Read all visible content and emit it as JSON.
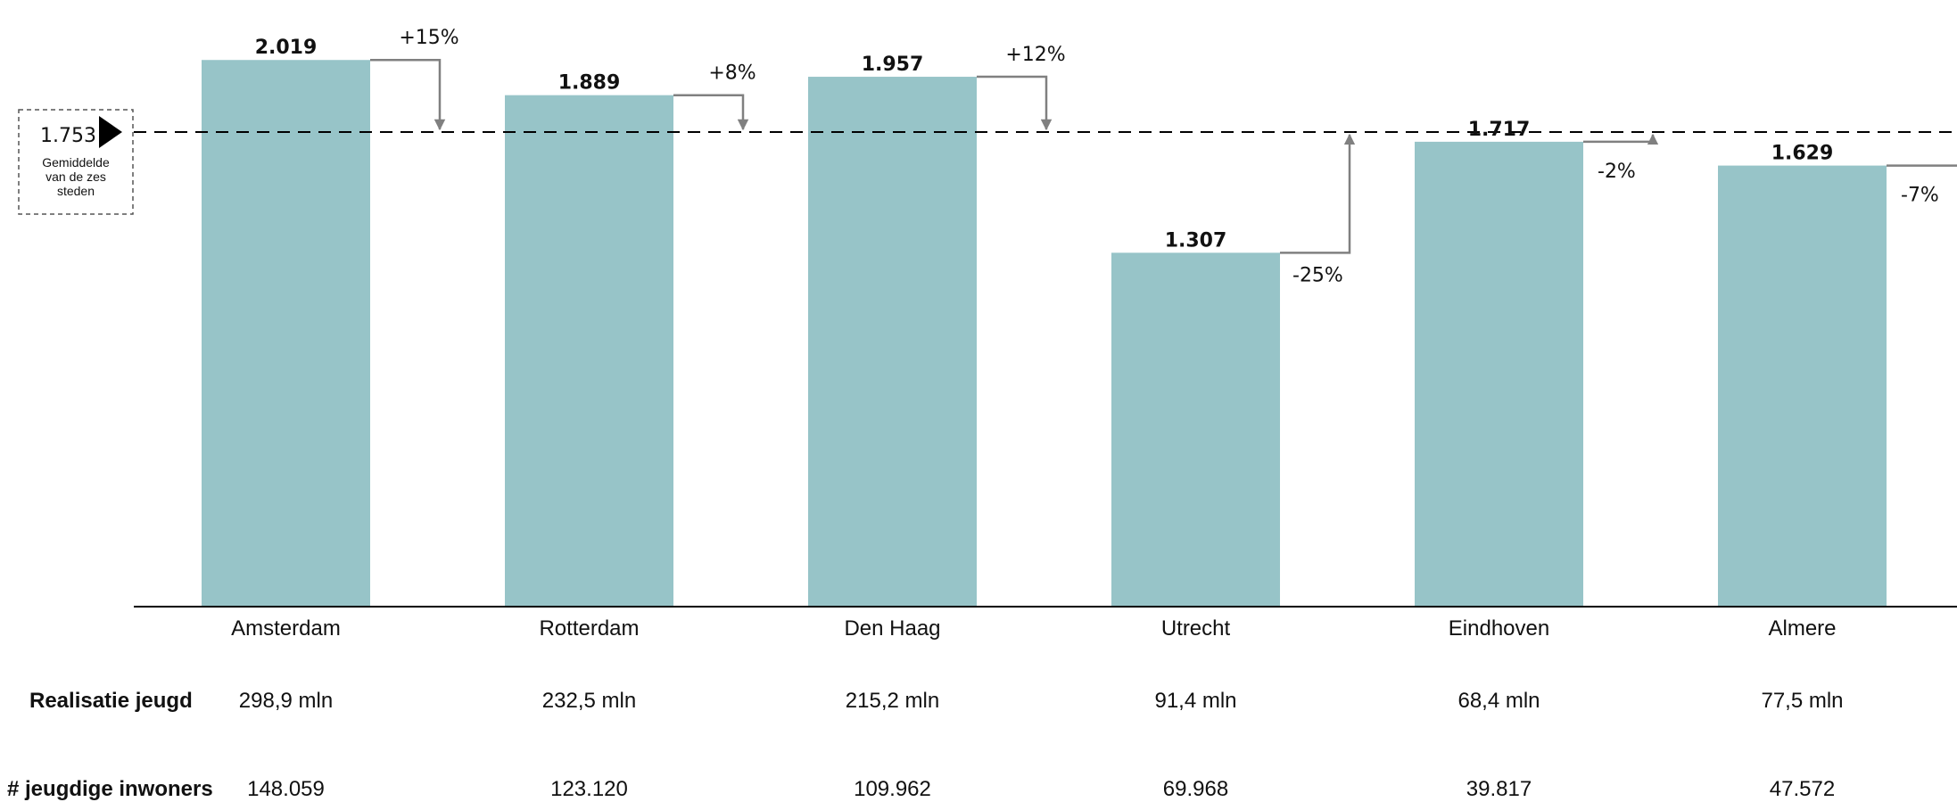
{
  "chart_data": {
    "type": "bar",
    "categories": [
      "Amsterdam",
      "Rotterdam",
      "Den Haag",
      "Utrecht",
      "Eindhoven",
      "Almere"
    ],
    "values": [
      2019,
      1889,
      1957,
      1307,
      1717,
      1629
    ],
    "value_labels": [
      "2.019",
      "1.889",
      "1.957",
      "1.307",
      "1.717",
      "1.629"
    ],
    "deviations": [
      "+15%",
      "+8%",
      "+12%",
      "-25%",
      "-2%",
      "-7%"
    ],
    "average": {
      "value": 1753,
      "label": "1.753",
      "caption_lines": [
        "Gemiddelde",
        "van de zes",
        "steden"
      ]
    },
    "ylim": [
      0,
      2100
    ],
    "bar_color": "#97c4c8",
    "arrow_color": "#808080",
    "rows": [
      {
        "label": "Realisatie jeugd",
        "values": [
          "298,9 mln",
          "232,5 mln",
          "215,2 mln",
          "91,4 mln",
          "68,4 mln",
          "77,5 mln"
        ]
      },
      {
        "label": "# jeugdige inwoners",
        "values": [
          "148.059",
          "123.120",
          "109.962",
          "69.968",
          "39.817",
          "47.572"
        ]
      }
    ]
  }
}
